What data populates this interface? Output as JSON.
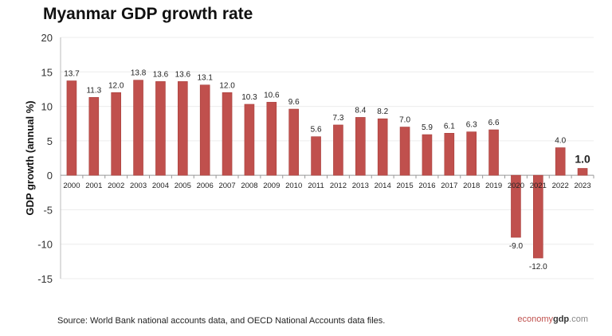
{
  "chart_data": {
    "type": "bar",
    "title": "Myanmar GDP growth rate",
    "xlabel": "",
    "ylabel": "GDP growth (annual %)",
    "ylim": [
      -15,
      20
    ],
    "yticks": [
      20,
      15,
      10,
      5,
      0,
      -5,
      -10,
      -15
    ],
    "grid": true,
    "categories": [
      "2000",
      "2001",
      "2002",
      "2003",
      "2004",
      "2005",
      "2006",
      "2007",
      "2008",
      "2009",
      "2010",
      "2011",
      "2012",
      "2013",
      "2014",
      "2015",
      "2016",
      "2017",
      "2018",
      "2019",
      "2020",
      "2021",
      "2022",
      "2023"
    ],
    "values": [
      13.7,
      11.3,
      12.0,
      13.8,
      13.6,
      13.6,
      13.1,
      12.0,
      10.3,
      10.6,
      9.6,
      5.6,
      7.3,
      8.4,
      8.2,
      7.0,
      5.9,
      6.1,
      6.3,
      6.6,
      -9.0,
      -12.0,
      4.0,
      1.0
    ],
    "labels": [
      "13.7",
      "11.3",
      "12.0",
      "13.8",
      "13.6",
      "13.6",
      "13.1",
      "12.0",
      "10.3",
      "10.6",
      "9.6",
      "5.6",
      "7.3",
      "8.4",
      "8.2",
      "7.0",
      "5.9",
      "6.1",
      "6.3",
      "6.6",
      "-9.0",
      "-12.0",
      "4.0",
      "1.0"
    ],
    "highlight_last": true,
    "bar_color": "#c0504d"
  },
  "source": "Source: World Bank national accounts data, and OECD National Accounts data files.",
  "logo": {
    "part1": "economy",
    "part2": "gdp",
    "part3": ".com"
  }
}
